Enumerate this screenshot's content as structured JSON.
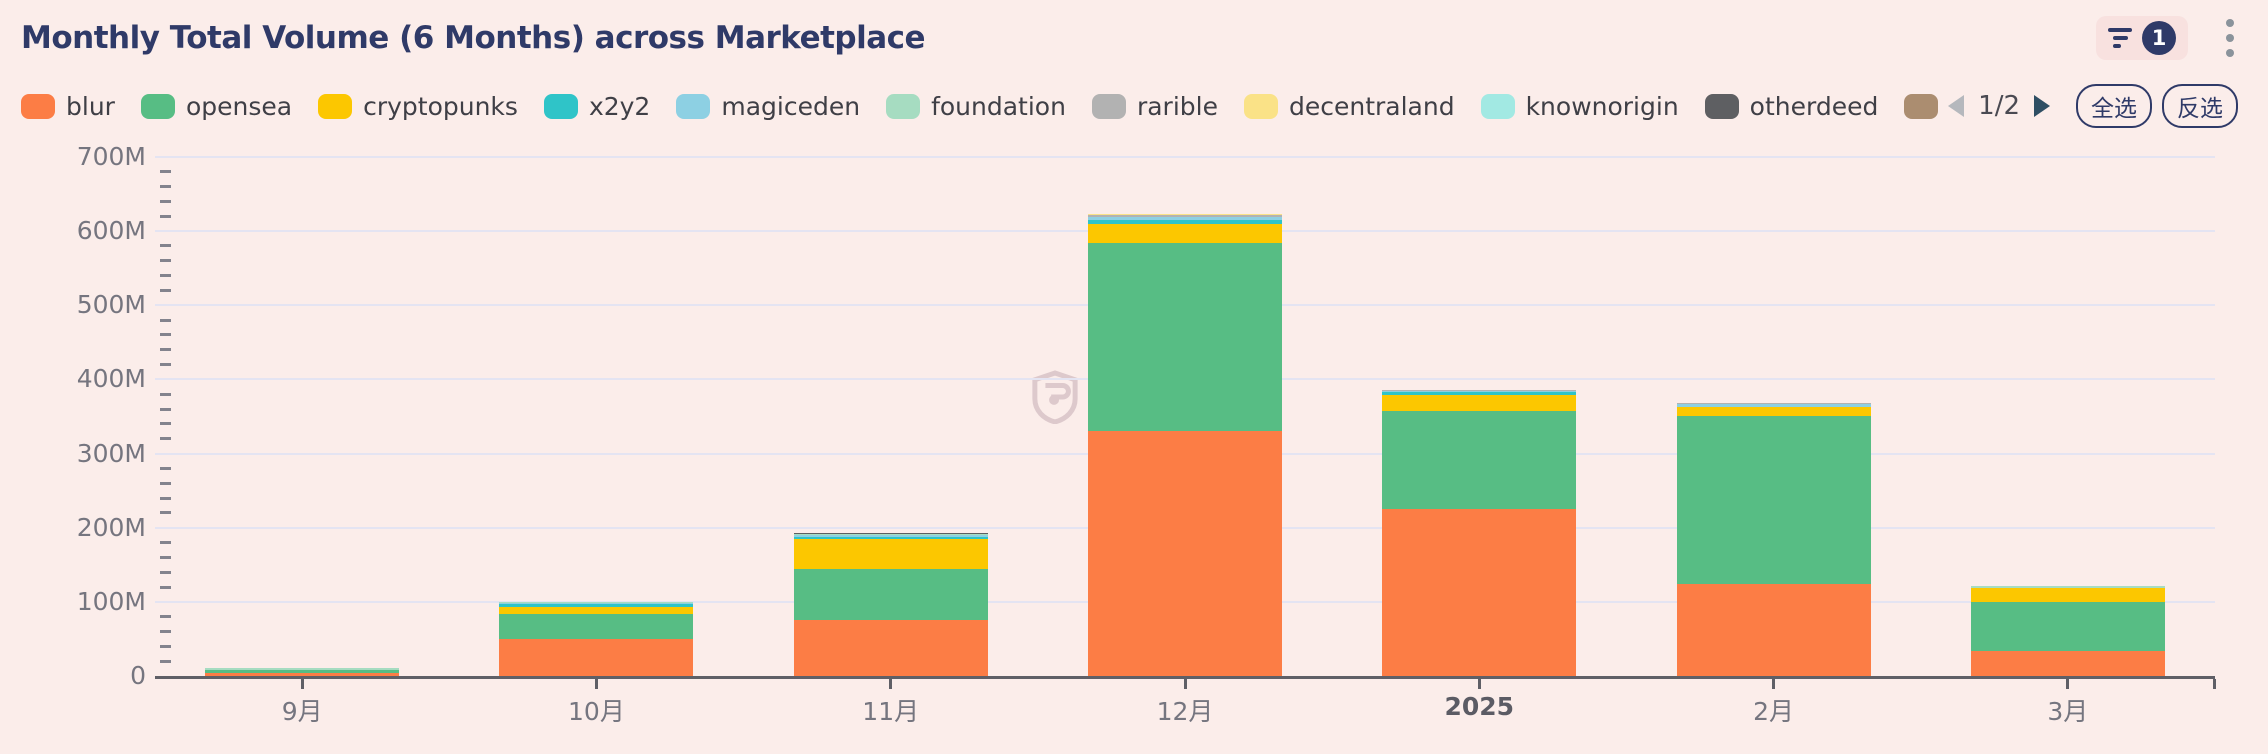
{
  "header": {
    "title": "Monthly Total Volume (6 Months) across Marketplace",
    "filter_count": "1",
    "icons": [
      "filter-icon",
      "kebab-menu-icon"
    ]
  },
  "legend": {
    "items": [
      {
        "name": "blur",
        "label": "blur",
        "color": "#fc7d45",
        "truncated": false
      },
      {
        "name": "opensea",
        "label": "opensea",
        "color": "#57bd84",
        "truncated": false
      },
      {
        "name": "cryptopunks",
        "label": "cryptopunks",
        "color": "#fcc700",
        "truncated": false
      },
      {
        "name": "x2y2",
        "label": "x2y2",
        "color": "#2fc4c8",
        "truncated": false
      },
      {
        "name": "magiceden",
        "label": "magiceden",
        "color": "#8dd0e3",
        "truncated": false
      },
      {
        "name": "foundation",
        "label": "foundation",
        "color": "#a6dcc1",
        "truncated": false
      },
      {
        "name": "rarible",
        "label": "rarible",
        "color": "#b2b2b2",
        "truncated": false
      },
      {
        "name": "decentraland",
        "label": "decentraland",
        "color": "#fae287",
        "truncated": false
      },
      {
        "name": "knownorigin",
        "label": "knownorigin",
        "color": "#a2e9e3",
        "truncated": false
      },
      {
        "name": "otherdeed",
        "label": "otherdeed",
        "color": "#5e5f62",
        "truncated": false
      },
      {
        "name": "item-11",
        "label": "",
        "color": "#ab8d70",
        "truncated": true
      }
    ],
    "pagination": {
      "current_page_label": "1/2",
      "select_all": "全选",
      "invert": "反选"
    }
  },
  "watermark": {
    "letter": "b"
  },
  "chart_data": {
    "type": "bar",
    "stacked": true,
    "title": "Monthly Total Volume (6 Months) across Marketplace",
    "categories": [
      "9月",
      "10月",
      "11月",
      "12月",
      "2025",
      "2月",
      "3月"
    ],
    "bold_category": "2025",
    "unit": "M",
    "ylim": [
      0,
      700
    ],
    "ytick_step": 100,
    "yminor_step": 20,
    "ytick_labels": [
      "0",
      "100M",
      "200M",
      "300M",
      "400M",
      "500M",
      "600M",
      "700M"
    ],
    "grid": true,
    "legend_position": "top",
    "series": [
      {
        "name": "blur",
        "color": "#fc7d45",
        "values": [
          4.5,
          50,
          76,
          331,
          225,
          124,
          34
        ]
      },
      {
        "name": "opensea",
        "color": "#57bd84",
        "values": [
          3,
          33,
          69,
          253,
          132,
          227,
          66
        ]
      },
      {
        "name": "cryptopunks",
        "color": "#fcc700",
        "values": [
          0.4,
          10,
          40,
          26,
          22,
          11.5,
          18.5
        ]
      },
      {
        "name": "x2y2",
        "color": "#2fc4c8",
        "values": [
          0.2,
          4.5,
          2.7,
          4.7,
          4.5,
          0.8,
          0.4
        ]
      },
      {
        "name": "magiceden",
        "color": "#8dd0e3",
        "values": [
          0.15,
          1.5,
          2,
          4,
          1.2,
          3.3,
          0.4
        ]
      },
      {
        "name": "foundation",
        "color": "#a6dcc1",
        "values": [
          2,
          0.4,
          1.6,
          0.8,
          0.4,
          0.4,
          2
        ]
      },
      {
        "name": "rarible",
        "color": "#b2b2b2",
        "values": [
          0.15,
          0.3,
          0.4,
          2.8,
          0.4,
          1.2,
          0.3
        ]
      },
      {
        "name": "decentraland",
        "color": "#fae287",
        "values": [
          0.1,
          0.15,
          0.3,
          0.5,
          0.3,
          0.3,
          0.2
        ]
      },
      {
        "name": "knownorigin",
        "color": "#a2e9e3",
        "values": [
          0.05,
          0.1,
          0.2,
          0.3,
          0.2,
          0.2,
          0.1
        ]
      },
      {
        "name": "otherdeed",
        "color": "#5e5f62",
        "values": [
          0.05,
          0.1,
          0.2,
          0.3,
          0.2,
          0.2,
          0.1
        ]
      }
    ]
  }
}
